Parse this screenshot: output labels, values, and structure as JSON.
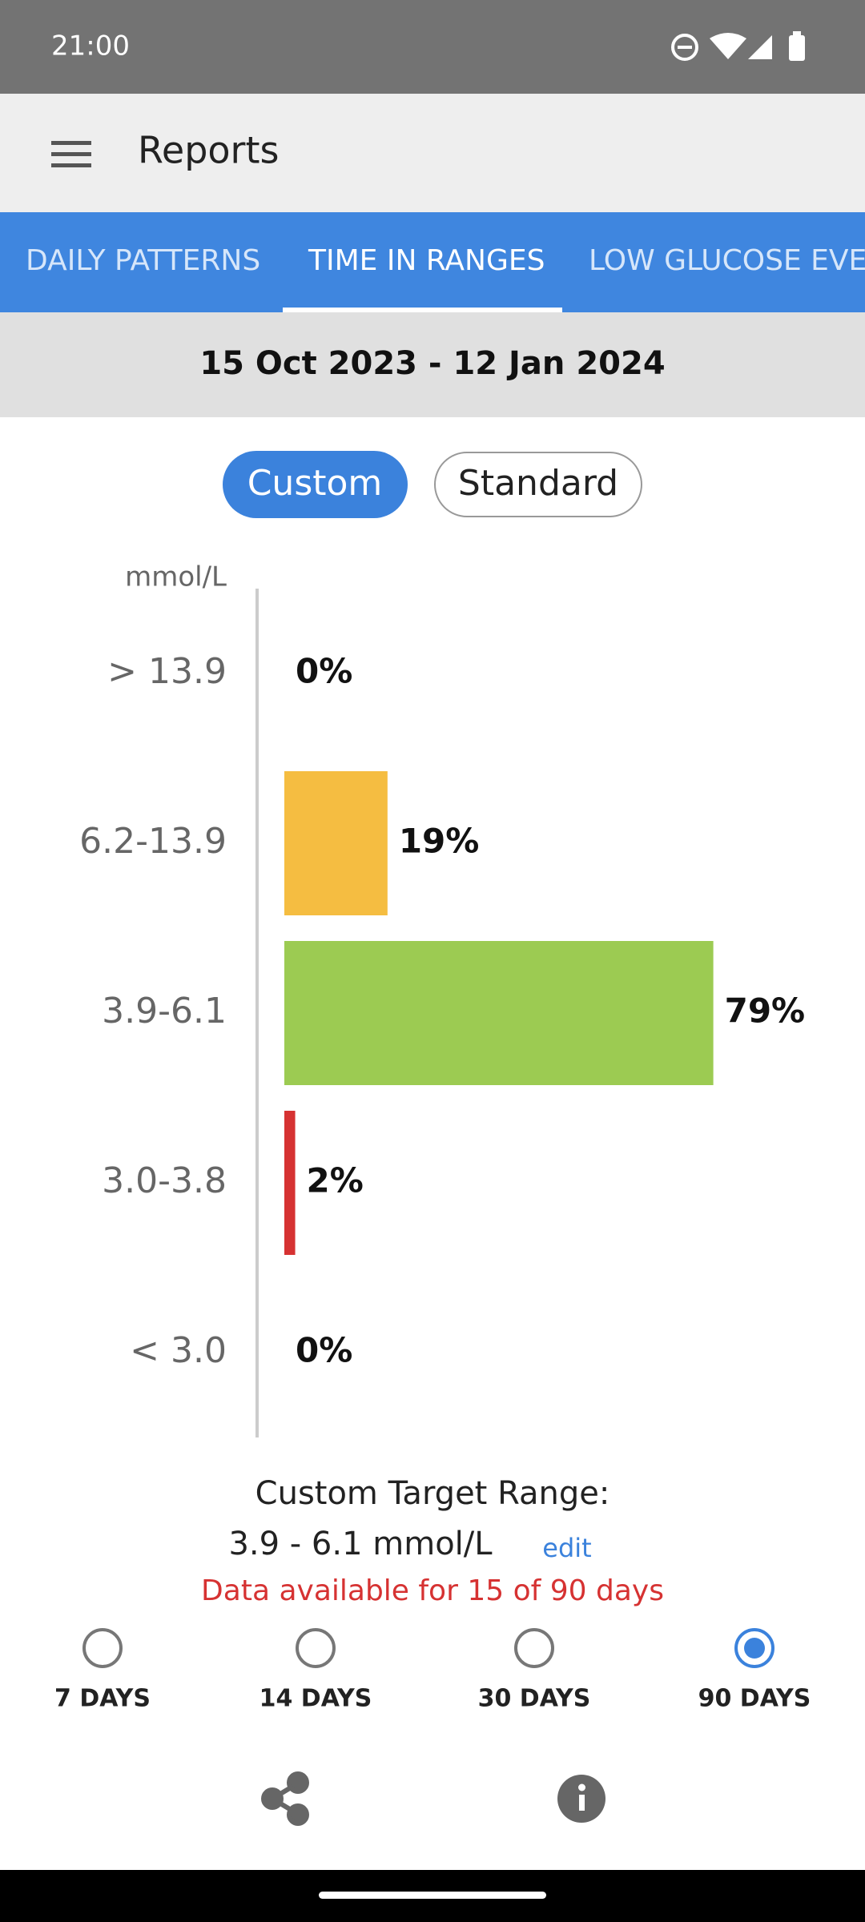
{
  "status_bar": {
    "time": "21:00"
  },
  "app_bar": {
    "title": "Reports"
  },
  "tabs": [
    "DAILY PATTERNS",
    "TIME IN RANGES",
    "LOW GLUCOSE EVENTS"
  ],
  "date_range": "15 Oct 2023 - 12 Jan 2024",
  "toggle": [
    "Custom",
    "Standard"
  ],
  "chart_data": {
    "type": "bar",
    "orientation": "horizontal",
    "y_label": "mmol/L",
    "categories": [
      "> 13.9",
      "6.2-13.9",
      "3.9-6.1",
      "3.0-3.8",
      "< 3.0"
    ],
    "values": [
      0,
      19,
      79,
      2,
      0
    ],
    "value_labels": [
      "0%",
      "19%",
      "79%",
      "2%",
      "0%"
    ],
    "colors": [
      null,
      "#f5bd41",
      "#9ccb52",
      "#d63232",
      null
    ]
  },
  "target": {
    "title": "Custom Target Range:",
    "range": "3.9 - 6.1 mmol/L",
    "edit": "edit",
    "availability": "Data available for 15 of 90 days"
  },
  "periods": [
    {
      "label": "7 DAYS",
      "selected": false
    },
    {
      "label": "14 DAYS",
      "selected": false
    },
    {
      "label": "30 DAYS",
      "selected": false
    },
    {
      "label": "90 DAYS",
      "selected": true
    }
  ]
}
